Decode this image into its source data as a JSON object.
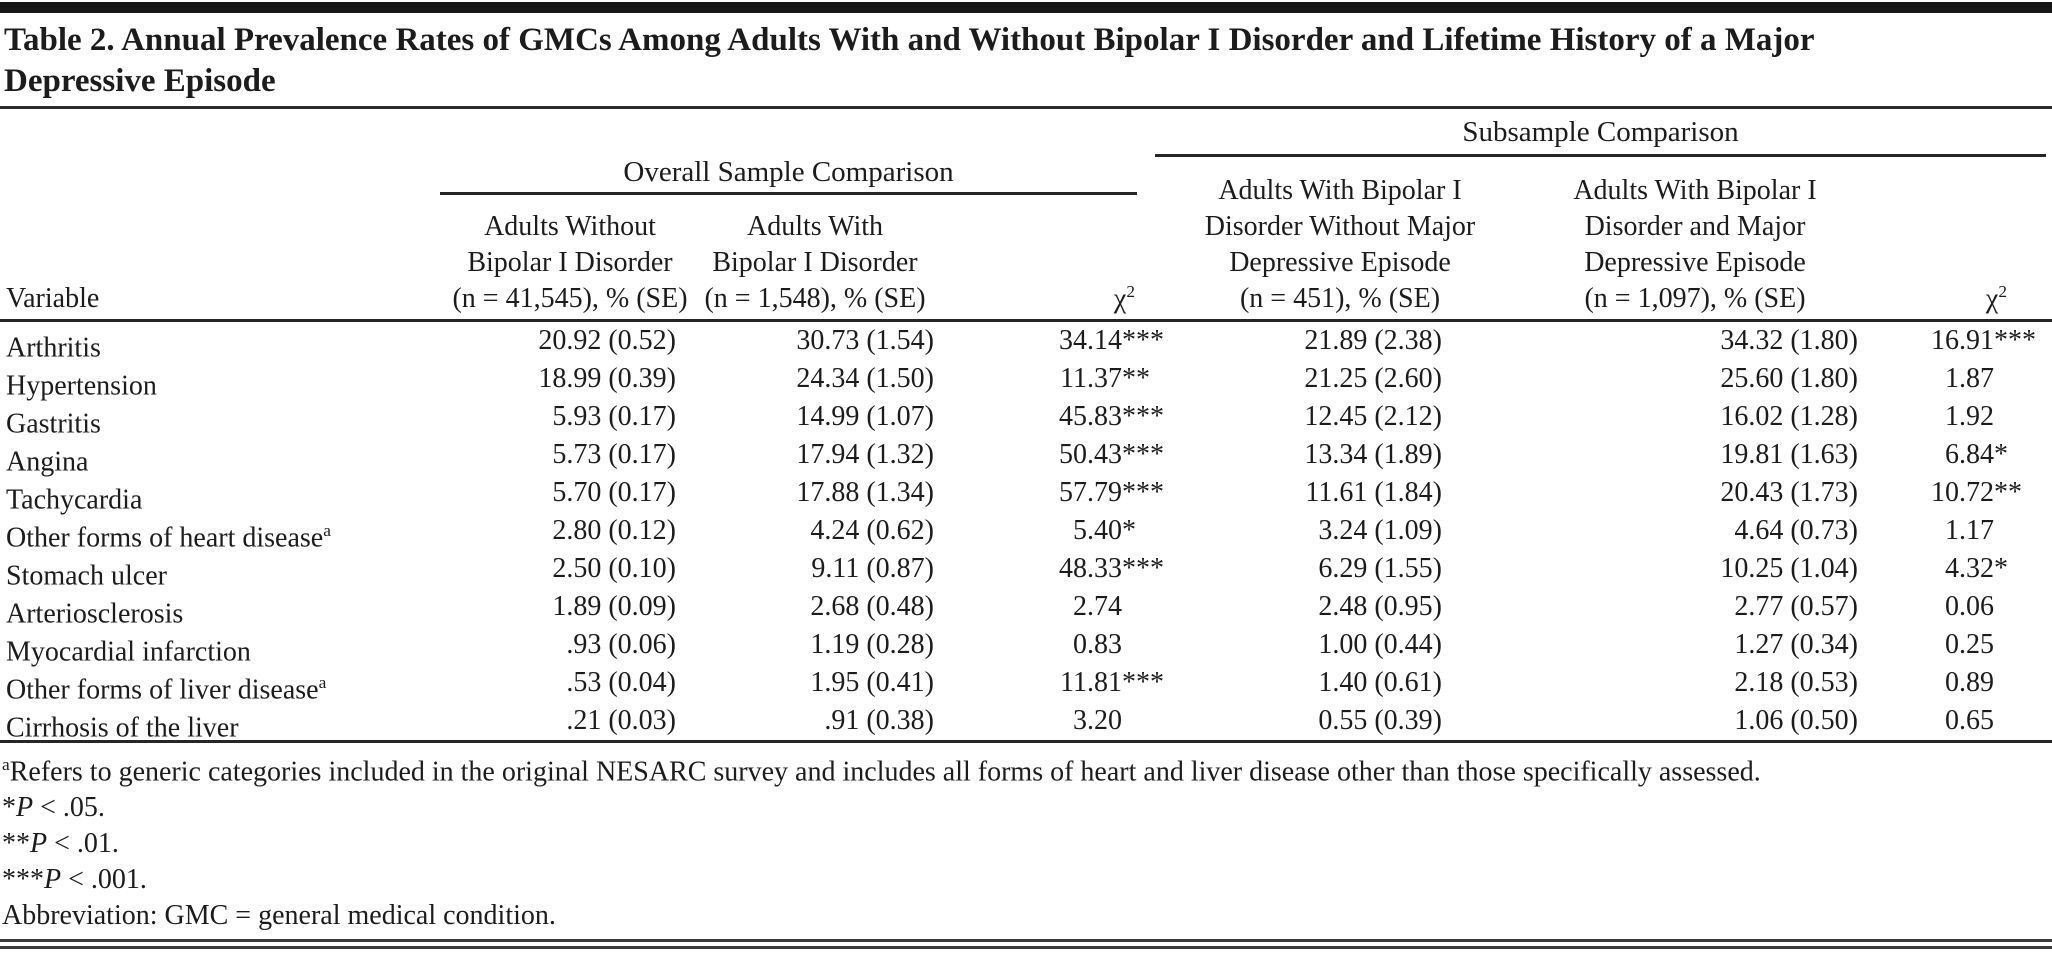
{
  "table": {
    "title": "Table 2. Annual Prevalence Rates of GMCs Among Adults With and Without Bipolar I Disorder and Lifetime History of a Major\nDepressive Episode",
    "variable_header": "Variable",
    "chi_header": {
      "base": "χ",
      "sup": "2"
    },
    "groups": [
      {
        "name": "Overall Sample Comparison",
        "cols": [
          "Adults Without\nBipolar I Disorder\n(n = 41,545), % (SE)",
          "Adults With\nBipolar I Disorder\n(n = 1,548), % (SE)"
        ]
      },
      {
        "name": "Subsample Comparison",
        "cols": [
          "Adults With Bipolar I\nDisorder Without Major\nDepressive Episode\n(n = 451), % (SE)",
          "Adults With Bipolar I\nDisorder and Major\nDepressive Episode\n(n = 1,097), % (SE)"
        ]
      }
    ],
    "rows": [
      {
        "variable": "Arthritis",
        "variable_sup": "",
        "v1": "20.92 (0.52)",
        "v2": "30.73 (1.54)",
        "chi1": "34.14",
        "chi1_stars": "***",
        "v3": "21.89 (2.38)",
        "v4": "34.32 (1.80)",
        "chi2": "16.91",
        "chi2_stars": "***"
      },
      {
        "variable": "Hypertension",
        "variable_sup": "",
        "v1": "18.99 (0.39)",
        "v2": "24.34 (1.50)",
        "chi1": "11.37",
        "chi1_stars": "**",
        "v3": "21.25 (2.60)",
        "v4": "25.60 (1.80)",
        "chi2": "1.87",
        "chi2_stars": ""
      },
      {
        "variable": "Gastritis",
        "variable_sup": "",
        "v1": "5.93 (0.17)",
        "v2": "14.99 (1.07)",
        "chi1": "45.83",
        "chi1_stars": "***",
        "v3": "12.45 (2.12)",
        "v4": "16.02 (1.28)",
        "chi2": "1.92",
        "chi2_stars": ""
      },
      {
        "variable": "Angina",
        "variable_sup": "",
        "v1": "5.73 (0.17)",
        "v2": "17.94 (1.32)",
        "chi1": "50.43",
        "chi1_stars": "***",
        "v3": "13.34 (1.89)",
        "v4": "19.81 (1.63)",
        "chi2": "6.84",
        "chi2_stars": "*"
      },
      {
        "variable": "Tachycardia",
        "variable_sup": "",
        "v1": "5.70 (0.17)",
        "v2": "17.88 (1.34)",
        "chi1": "57.79",
        "chi1_stars": "***",
        "v3": "11.61 (1.84)",
        "v4": "20.43 (1.73)",
        "chi2": "10.72",
        "chi2_stars": "**"
      },
      {
        "variable": "Other forms of heart disease",
        "variable_sup": "a",
        "v1": "2.80 (0.12)",
        "v2": "4.24 (0.62)",
        "chi1": "5.40",
        "chi1_stars": "*",
        "v3": "3.24 (1.09)",
        "v4": "4.64 (0.73)",
        "chi2": "1.17",
        "chi2_stars": ""
      },
      {
        "variable": "Stomach ulcer",
        "variable_sup": "",
        "v1": "2.50 (0.10)",
        "v2": "9.11 (0.87)",
        "chi1": "48.33",
        "chi1_stars": "***",
        "v3": "6.29 (1.55)",
        "v4": "10.25 (1.04)",
        "chi2": "4.32",
        "chi2_stars": "*"
      },
      {
        "variable": "Arteriosclerosis",
        "variable_sup": "",
        "v1": "1.89 (0.09)",
        "v2": "2.68 (0.48)",
        "chi1": "2.74",
        "chi1_stars": "",
        "v3": "2.48 (0.95)",
        "v4": "2.77 (0.57)",
        "chi2": "0.06",
        "chi2_stars": ""
      },
      {
        "variable": "Myocardial infarction",
        "variable_sup": "",
        "v1": ".93 (0.06)",
        "v2": "1.19 (0.28)",
        "chi1": "0.83",
        "chi1_stars": "",
        "v3": "1.00 (0.44)",
        "v4": "1.27 (0.34)",
        "chi2": "0.25",
        "chi2_stars": ""
      },
      {
        "variable": "Other forms of liver disease",
        "variable_sup": "a",
        "v1": ".53 (0.04)",
        "v2": "1.95 (0.41)",
        "chi1": "11.81",
        "chi1_stars": "***",
        "v3": "1.40 (0.61)",
        "v4": "2.18 (0.53)",
        "chi2": "0.89",
        "chi2_stars": ""
      },
      {
        "variable": "Cirrhosis of the liver",
        "variable_sup": "",
        "v1": ".21 (0.03)",
        "v2": ".91 (0.38)",
        "chi1": "3.20",
        "chi1_stars": "",
        "v3": "0.55 (0.39)",
        "v4": "1.06 (0.50)",
        "chi2": "0.65",
        "chi2_stars": ""
      }
    ],
    "footnotes": {
      "a_sup": "a",
      "a_text": "Refers to generic categories included in the original NESARC survey and includes all forms of heart and liver disease other than those specifically assessed.",
      "sig": [
        {
          "stars": "*",
          "p": "P",
          "rest": " < .05."
        },
        {
          "stars": "**",
          "p": "P",
          "rest": " < .01."
        },
        {
          "stars": "***",
          "p": "P",
          "rest": " < .001."
        }
      ],
      "abbreviation": "Abbreviation: GMC = general medical condition."
    }
  }
}
